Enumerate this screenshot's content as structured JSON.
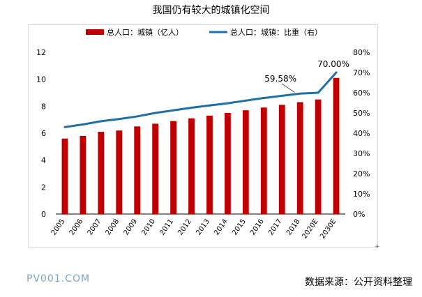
{
  "title": "我国仍有较大的城镇化空间",
  "watermark": "PV001.COM",
  "source": "数据来源：公开资料整理",
  "frame_mark": "+",
  "colors": {
    "bar": "#c00000",
    "line": "#1f6fa8",
    "watermark": "#7aa7c7",
    "axis_text": "#000000"
  },
  "chart_data": {
    "type": "bar",
    "categories": [
      "2005",
      "2006",
      "2007",
      "2008",
      "2009",
      "2010",
      "2011",
      "2012",
      "2013",
      "2014",
      "2015",
      "2016",
      "2017",
      "2018",
      "2020E",
      "2030E"
    ],
    "series": [
      {
        "name": "总人口：城镇（亿人）",
        "type": "bar",
        "axis": "left",
        "values": [
          5.6,
          5.8,
          6.1,
          6.2,
          6.5,
          6.7,
          6.9,
          7.1,
          7.3,
          7.5,
          7.7,
          7.9,
          8.1,
          8.3,
          8.5,
          10.1
        ]
      },
      {
        "name": "总人口：城镇：比重（右）",
        "type": "line",
        "axis": "right",
        "values": [
          43.0,
          44.3,
          45.9,
          47.0,
          48.3,
          50.0,
          51.3,
          52.6,
          53.7,
          54.8,
          56.1,
          57.4,
          58.5,
          59.58,
          60.0,
          70.0
        ]
      }
    ],
    "y_left": {
      "min": 0,
      "max": 12,
      "ticks": [
        "0",
        "2",
        "4",
        "6",
        "8",
        "10",
        "12"
      ]
    },
    "y_right": {
      "min": 0,
      "max": 80,
      "ticks": [
        "0%",
        "10%",
        "20%",
        "30%",
        "40%",
        "50%",
        "60%",
        "70%",
        "80%"
      ]
    },
    "annotations": [
      {
        "text": "59.58%",
        "category": "2018",
        "value": 59.58
      },
      {
        "text": "70.00%",
        "category": "2030E",
        "value": 70.0
      }
    ],
    "legend_position": "top",
    "grid": false
  }
}
